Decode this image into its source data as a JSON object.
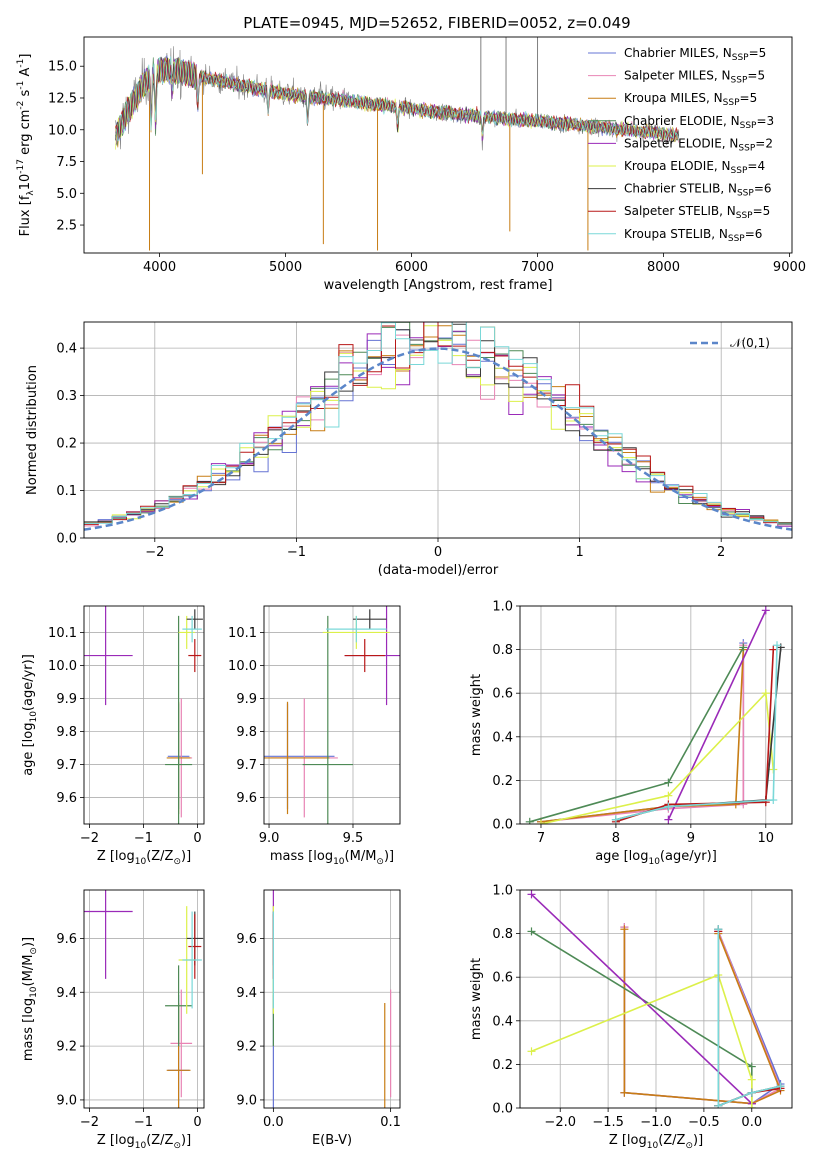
{
  "figure_title": "PLATE=0945, MJD=52652, FIBERID=0052, z=0.049",
  "colors": {
    "chabrier_miles": "#6674d4",
    "salpeter_miles": "#e884b4",
    "kroupa_miles": "#c77d15",
    "chabrier_elodie": "#4e8a56",
    "salpeter_elodie": "#9a2ab8",
    "kroupa_elodie": "#dcf04a",
    "chabrier_stelib": "#3a3a3a",
    "salpeter_stelib": "#b81818",
    "kroupa_stelib": "#7ad8d8",
    "data_spectrum": "#808080",
    "gauss": "#5b86c9",
    "grid": "#b0b0b0"
  },
  "chart_data": [
    {
      "id": "spectrum",
      "type": "line",
      "xlabel": "wavelength [Angstrom, rest frame]",
      "ylabel": "Flux [f$_\\lambda$10$^{-17}$ erg cm$^{-2}$ s$^{-1}$ A$^{-1}$]",
      "xlim": [
        3400,
        9020
      ],
      "ylim": [
        0.3,
        17.3
      ],
      "xticks": [
        4000,
        5000,
        6000,
        7000,
        8000,
        9000
      ],
      "yticks": [
        2.5,
        5.0,
        7.5,
        10.0,
        12.5,
        15.0
      ],
      "ytick_labels": [
        "2.5",
        "5.0",
        "7.5",
        "10.0",
        "12.5",
        "15.0"
      ],
      "grid": false,
      "legend_position": "top-right",
      "legend": [
        {
          "main": "Chabrier MILES, N",
          "sub": "SSP",
          "tail": "=5"
        },
        {
          "main": "Salpeter MILES, N",
          "sub": "SSP",
          "tail": "=5"
        },
        {
          "main": "Kroupa MILES, N",
          "sub": "SSP",
          "tail": "=5"
        },
        {
          "main": "Chabrier ELODIE, N",
          "sub": "SSP",
          "tail": "=3"
        },
        {
          "main": "Salpeter ELODIE, N",
          "sub": "SSP",
          "tail": "=2"
        },
        {
          "main": "Kroupa ELODIE, N",
          "sub": "SSP",
          "tail": "=4"
        },
        {
          "main": "Chabrier STELIB, N",
          "sub": "SSP",
          "tail": "=6"
        },
        {
          "main": "Salpeter STELIB, N",
          "sub": "SSP",
          "tail": "=5"
        },
        {
          "main": "Kroupa STELIB, N",
          "sub": "SSP",
          "tail": "=6"
        }
      ],
      "continuum_points": [
        [
          3650,
          9.5
        ],
        [
          3750,
          11.5
        ],
        [
          3850,
          13.2
        ],
        [
          3950,
          14.6
        ],
        [
          4100,
          14.8
        ],
        [
          4300,
          14.2
        ],
        [
          4500,
          13.8
        ],
        [
          4800,
          13.2
        ],
        [
          5000,
          12.8
        ],
        [
          5400,
          12.4
        ],
        [
          5800,
          11.9
        ],
        [
          6200,
          11.4
        ],
        [
          6600,
          11.0
        ],
        [
          7000,
          10.7
        ],
        [
          7400,
          10.3
        ],
        [
          7800,
          9.9
        ],
        [
          8100,
          9.6
        ]
      ],
      "absorption_features": [
        [
          3933,
          4.5
        ],
        [
          3968,
          5.0
        ],
        [
          4101,
          2.0
        ],
        [
          4304,
          3.0
        ],
        [
          4861,
          2.0
        ],
        [
          5175,
          2.5
        ],
        [
          5890,
          2.0
        ],
        [
          6563,
          2.0
        ],
        [
          8542,
          1.5
        ],
        [
          8662,
          1.5
        ]
      ],
      "outlier_spikes": [
        [
          3920,
          0.5
        ],
        [
          4340,
          6.5
        ],
        [
          5300,
          1.0
        ],
        [
          5730,
          0.5
        ],
        [
          6780,
          2.0
        ],
        [
          7400,
          0.5
        ],
        [
          6550,
          17.3
        ],
        [
          6750,
          17.3
        ],
        [
          7000,
          17.3
        ]
      ]
    },
    {
      "id": "residuals",
      "type": "histogram",
      "xlabel": "(data-model)/error",
      "ylabel": "Normed distribution",
      "xlim": [
        -2.5,
        2.5
      ],
      "ylim": [
        0,
        0.455
      ],
      "xticks": [
        -2,
        -1,
        0,
        1,
        2
      ],
      "xtick_labels": [
        "−2",
        "−1",
        "0",
        "1",
        "2"
      ],
      "yticks": [
        0.0,
        0.1,
        0.2,
        0.3,
        0.4
      ],
      "ytick_labels": [
        "0.0",
        "0.1",
        "0.2",
        "0.3",
        "0.4"
      ],
      "grid": true,
      "legend_position": "top-right",
      "gauss_label": "$\\mathcal{N}(0,1)$",
      "bin_width": 0.1
    },
    {
      "id": "age_vs_Z",
      "type": "scatter",
      "xlabel": "Z [log$_{10}$(Z/Z$_\\odot$)]",
      "ylabel": "age  [log$_{10}$(age/yr)]",
      "xlim": [
        -2.1,
        0.12
      ],
      "ylim": [
        9.52,
        10.18
      ],
      "xticks": [
        -2,
        -1,
        0
      ],
      "xtick_labels": [
        "−2",
        "−1",
        "0"
      ],
      "yticks": [
        9.6,
        9.7,
        9.8,
        9.9,
        10.0,
        10.1
      ],
      "ytick_labels": [
        "9.6",
        "9.7",
        "9.8",
        "9.9",
        "10.0",
        "10.1"
      ],
      "grid": true
    },
    {
      "id": "age_vs_mass",
      "type": "scatter",
      "xlabel": "mass [log$_{10}$(M/M$_\\odot$)]",
      "xlim": [
        8.97,
        9.78
      ],
      "ylim": [
        9.52,
        10.18
      ],
      "xticks": [
        9.0,
        9.5
      ],
      "xtick_labels": [
        "9.0",
        "9.5"
      ],
      "yticks": [
        9.6,
        9.7,
        9.8,
        9.9,
        10.0,
        10.1
      ],
      "ytick_labels": [
        "9.6",
        "9.7",
        "9.8",
        "9.9",
        "10.0",
        "10.1"
      ],
      "grid": true
    },
    {
      "id": "weight_vs_age",
      "type": "line",
      "xlabel": "age  [log$_{10}$(age/yr)]",
      "ylabel": "mass weight",
      "xlim": [
        6.72,
        10.35
      ],
      "ylim": [
        0,
        1.0
      ],
      "xticks": [
        7,
        8,
        9,
        10
      ],
      "xtick_labels": [
        "7",
        "8",
        "9",
        "10"
      ],
      "yticks": [
        0.0,
        0.2,
        0.4,
        0.6,
        0.8,
        1.0
      ],
      "ytick_labels": [
        "0.0",
        "0.2",
        "0.4",
        "0.6",
        "0.8",
        "1.0"
      ],
      "grid": true
    },
    {
      "id": "mass_vs_Z",
      "type": "scatter",
      "xlabel": "Z [log$_{10}$(Z/Z$_\\odot$)]",
      "ylabel": "mass [log$_{10}$(M/M$_\\odot$)]",
      "xlim": [
        -2.1,
        0.12
      ],
      "ylim": [
        8.97,
        9.78
      ],
      "xticks": [
        -2,
        -1,
        0
      ],
      "xtick_labels": [
        "−2",
        "−1",
        "0"
      ],
      "yticks": [
        9.0,
        9.2,
        9.4,
        9.6
      ],
      "ytick_labels": [
        "9.0",
        "9.2",
        "9.4",
        "9.6"
      ],
      "grid": true
    },
    {
      "id": "mass_vs_ebv",
      "type": "scatter",
      "xlabel": "E(B-V)",
      "xlim": [
        -0.008,
        0.108
      ],
      "ylim": [
        8.97,
        9.78
      ],
      "xticks": [
        0.0,
        0.1
      ],
      "xtick_labels": [
        "0.0",
        "0.1"
      ],
      "yticks": [
        9.0,
        9.2,
        9.4,
        9.6
      ],
      "ytick_labels": [
        "9.0",
        "9.2",
        "9.4",
        "9.6"
      ],
      "grid": true
    },
    {
      "id": "weight_vs_Z",
      "type": "line",
      "xlabel": "Z [log$_{10}$(Z/Z$_\\odot$)]",
      "ylabel": "mass weight",
      "xlim": [
        -2.42,
        0.42
      ],
      "ylim": [
        0,
        1.0
      ],
      "xticks": [
        -2.0,
        -1.5,
        -1.0,
        -0.5,
        0.0
      ],
      "xtick_labels": [
        "−2.0",
        "−1.5",
        "−1.0",
        "−0.5",
        "0.0"
      ],
      "yticks": [
        0.0,
        0.2,
        0.4,
        0.6,
        0.8,
        1.0
      ],
      "ytick_labels": [
        "0.0",
        "0.2",
        "0.4",
        "0.6",
        "0.8",
        "1.0"
      ],
      "grid": true
    }
  ],
  "models": [
    {
      "key": "chabrier_miles",
      "Z": -0.35,
      "Zerr": 0.2,
      "age": 9.725,
      "ageerr": 0.16,
      "mass": 9.11,
      "masserr": 0.28,
      "ebv": 0.0,
      "age_weights": [
        [
          7.0,
          0.01
        ],
        [
          8.7,
          0.08
        ],
        [
          9.7,
          0.1
        ],
        [
          9.7,
          0.83
        ]
      ],
      "z_weights": [
        [
          -1.33,
          0.83
        ],
        [
          -1.33,
          0.07
        ],
        [
          0.0,
          0.02
        ],
        [
          0.3,
          0.11
        ],
        [
          -0.35,
          0.81
        ]
      ]
    },
    {
      "key": "salpeter_miles",
      "Z": -0.3,
      "Zerr": 0.2,
      "age": 9.72,
      "ageerr": 0.18,
      "mass": 9.21,
      "masserr": 0.2,
      "ebv": 0.1,
      "age_weights": [
        [
          7.0,
          0.01
        ],
        [
          8.7,
          0.07
        ],
        [
          9.7,
          0.09
        ],
        [
          9.7,
          0.82
        ]
      ],
      "z_weights": [
        [
          -1.33,
          0.83
        ],
        [
          -1.33,
          0.07
        ],
        [
          0.0,
          0.02
        ],
        [
          0.3,
          0.09
        ],
        [
          -0.35,
          0.81
        ]
      ]
    },
    {
      "key": "kroupa_miles",
      "Z": -0.35,
      "Zerr": 0.22,
      "age": 9.72,
      "ageerr": 0.17,
      "mass": 9.11,
      "masserr": 0.25,
      "ebv": 0.095,
      "age_weights": [
        [
          7.0,
          0.01
        ],
        [
          8.7,
          0.08
        ],
        [
          9.6,
          0.09
        ],
        [
          9.7,
          0.8
        ]
      ],
      "z_weights": [
        [
          -1.33,
          0.82
        ],
        [
          -1.33,
          0.07
        ],
        [
          0.0,
          0.02
        ],
        [
          0.3,
          0.08
        ],
        [
          -0.35,
          0.8
        ]
      ]
    },
    {
      "key": "chabrier_elodie",
      "Z": -0.35,
      "Zerr": 0.25,
      "age": 9.7,
      "ageerr": 0.45,
      "mass": 9.35,
      "masserr": 0.15,
      "ebv": 0.0,
      "age_weights": [
        [
          6.85,
          0.01
        ],
        [
          8.7,
          0.19
        ],
        [
          9.7,
          0.81
        ]
      ],
      "z_weights": [
        [
          -2.3,
          0.81
        ],
        [
          0.0,
          0.19
        ],
        [
          0.0,
          0.0
        ]
      ]
    },
    {
      "key": "salpeter_elodie",
      "Z": -1.7,
      "Zerr": 0.5,
      "age": 10.03,
      "ageerr": 0.15,
      "mass": 9.7,
      "masserr": 0.25,
      "ebv": 0.0,
      "age_weights": [
        [
          8.7,
          0.02
        ],
        [
          10.0,
          0.98
        ]
      ],
      "z_weights": [
        [
          -2.3,
          0.98
        ],
        [
          0.0,
          0.02
        ]
      ]
    },
    {
      "key": "kroupa_elodie",
      "Z": -0.2,
      "Zerr": 0.15,
      "age": 10.1,
      "ageerr": 0.05,
      "mass": 9.52,
      "masserr": 0.2,
      "ebv": 0.0,
      "age_weights": [
        [
          7.0,
          0.0
        ],
        [
          8.7,
          0.13
        ],
        [
          10.0,
          0.6
        ],
        [
          10.1,
          0.25
        ]
      ],
      "z_weights": [
        [
          -2.3,
          0.26
        ],
        [
          -0.35,
          0.61
        ],
        [
          0.0,
          0.13
        ],
        [
          0.0,
          0.0
        ]
      ]
    },
    {
      "key": "chabrier_stelib",
      "Z": -0.05,
      "Zerr": 0.15,
      "age": 10.14,
      "ageerr": 0.03,
      "mass": 9.6,
      "masserr": 0.1,
      "ebv": 0.0,
      "age_weights": [
        [
          8.0,
          0.02
        ],
        [
          8.7,
          0.08
        ],
        [
          10.0,
          0.11
        ],
        [
          10.2,
          0.81
        ]
      ],
      "z_weights": [
        [
          -0.35,
          0.82
        ],
        [
          -0.35,
          0.01
        ],
        [
          0.0,
          0.07
        ],
        [
          0.3,
          0.1
        ]
      ]
    },
    {
      "key": "salpeter_stelib",
      "Z": -0.05,
      "Zerr": 0.12,
      "age": 10.03,
      "ageerr": 0.05,
      "mass": 9.57,
      "masserr": 0.12,
      "ebv": 0.0,
      "age_weights": [
        [
          8.0,
          0.01
        ],
        [
          8.7,
          0.09
        ],
        [
          10.0,
          0.1
        ],
        [
          10.1,
          0.8
        ]
      ],
      "z_weights": [
        [
          -0.35,
          0.81
        ],
        [
          -0.35,
          0.01
        ],
        [
          0.0,
          0.07
        ],
        [
          0.3,
          0.09
        ]
      ]
    },
    {
      "key": "kroupa_stelib",
      "Z": -0.1,
      "Zerr": 0.18,
      "age": 10.11,
      "ageerr": 0.04,
      "mass": 9.52,
      "masserr": 0.18,
      "ebv": 0.0,
      "age_weights": [
        [
          8.0,
          0.02
        ],
        [
          8.7,
          0.08
        ],
        [
          10.1,
          0.11
        ],
        [
          10.15,
          0.82
        ]
      ],
      "z_weights": [
        [
          -0.35,
          0.82
        ],
        [
          -0.35,
          0.01
        ],
        [
          0.0,
          0.07
        ],
        [
          0.3,
          0.1
        ]
      ]
    }
  ]
}
